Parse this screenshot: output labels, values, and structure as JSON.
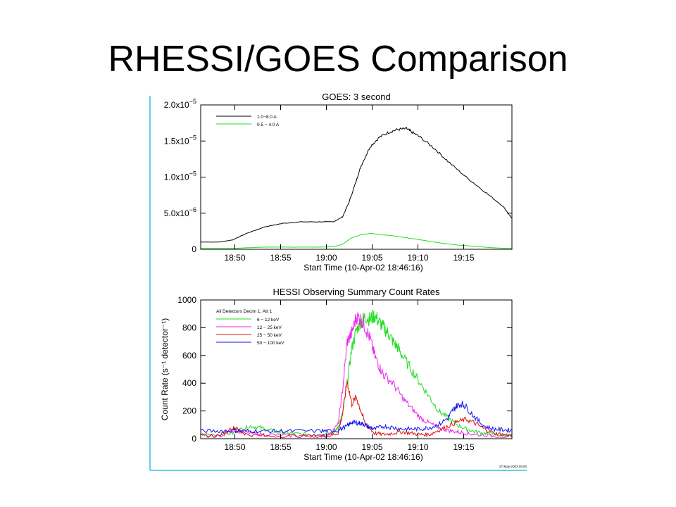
{
  "slide": {
    "title": "RHESSI/GOES Comparison"
  },
  "colors": {
    "accent_border": "#5fd3e8",
    "black": "#000000",
    "green": "#22dd22",
    "magenta": "#ee22ee",
    "red": "#dd1111",
    "blue": "#1111ee"
  },
  "chart_data": [
    {
      "type": "line",
      "title": "GOES: 3 second",
      "xlabel": "Start Time (10-Apr-02 18:46:16)",
      "ylabel": "",
      "x_unit": "minutes after 18:46:16",
      "xlim": [
        0,
        34
      ],
      "ylim": [
        0,
        2e-05
      ],
      "x_ticks": [
        "18:50",
        "18:55",
        "19:00",
        "19:05",
        "19:10",
        "19:15"
      ],
      "x_tick_values": [
        3.73,
        8.73,
        13.73,
        18.73,
        23.73,
        28.73
      ],
      "y_ticks": [
        {
          "value": 0,
          "mant": "0",
          "exp": ""
        },
        {
          "value": 5e-06,
          "mant": "5.0x10",
          "exp": "−6"
        },
        {
          "value": 1e-05,
          "mant": "1.0x10",
          "exp": "−5"
        },
        {
          "value": 1.5e-05,
          "mant": "1.5x10",
          "exp": "−5"
        },
        {
          "value": 2e-05,
          "mant": "2.0x10",
          "exp": "−5"
        }
      ],
      "legend_position": "top-left",
      "series": [
        {
          "name": "1.0−8.0 A",
          "color": "#000000",
          "x": [
            0,
            2,
            3.5,
            5,
            7,
            9,
            11,
            13,
            14.5,
            15.5,
            16.2,
            17,
            17.5,
            18.5,
            19.5,
            20.5,
            21.5,
            22.5,
            23,
            24,
            25.5,
            27,
            29,
            31,
            33,
            34
          ],
          "y": [
            1e-06,
            1e-06,
            1.3e-06,
            2.2e-06,
            3.1e-06,
            3.6e-06,
            3.8e-06,
            3.8e-06,
            3.8e-06,
            4.5e-06,
            6.5e-06,
            9.5e-06,
            1.15e-05,
            1.42e-05,
            1.55e-05,
            1.62e-05,
            1.66e-05,
            1.67e-05,
            1.63e-05,
            1.55e-05,
            1.4e-05,
            1.22e-05,
            1e-05,
            8e-06,
            6e-06,
            4.3e-06
          ]
        },
        {
          "name": "0.5 − 4.0 A",
          "color": "#22dd22",
          "x": [
            0,
            3,
            5,
            7,
            10,
            13,
            14.5,
            15.5,
            16.5,
            17.5,
            18.5,
            20,
            22,
            24,
            26,
            28,
            30,
            32,
            34
          ],
          "y": [
            1e-07,
            1e-07,
            2e-07,
            3e-07,
            3e-07,
            3e-07,
            3.5e-07,
            7e-07,
            1.6e-06,
            2e-06,
            2.2e-06,
            2e-06,
            1.7e-06,
            1.3e-06,
            9e-07,
            6e-07,
            4e-07,
            2e-07,
            1e-07
          ]
        }
      ]
    },
    {
      "type": "line",
      "title": "HESSI Observing Summary Count Rates",
      "xlabel": "Start Time (10-Apr-02 18:46:16)",
      "ylabel": "Count Rate (s⁻¹ detector⁻¹)",
      "x_unit": "minutes after 18:46:16",
      "xlim": [
        0,
        34
      ],
      "ylim": [
        0,
        1000
      ],
      "x_ticks": [
        "18:50",
        "18:55",
        "19:00",
        "19:05",
        "19:10",
        "19:15"
      ],
      "x_tick_values": [
        3.73,
        8.73,
        13.73,
        18.73,
        23.73,
        28.73
      ],
      "y_ticks": [
        0,
        200,
        400,
        600,
        800,
        1000
      ],
      "legend_position": "top-left",
      "legend_header": "All Detectors Decim 1, Att 1",
      "stamp": "27-May-2002 09:00",
      "series": [
        {
          "name": "6 − 12 keV",
          "color": "#22dd22",
          "x": [
            0,
            2,
            3.5,
            4.5,
            5.5,
            6.5,
            7.5,
            8.5,
            9.5,
            10.5,
            12,
            13.5,
            14.5,
            15,
            15.5,
            16,
            16.5,
            17,
            17.5,
            18,
            18.5,
            19,
            19.5,
            20,
            20.5,
            21,
            21.5,
            22,
            23,
            24,
            25,
            26,
            27,
            28,
            29,
            30,
            31,
            32,
            33,
            34
          ],
          "y": [
            30,
            30,
            40,
            70,
            90,
            80,
            60,
            50,
            40,
            35,
            30,
            35,
            45,
            80,
            180,
            400,
            650,
            780,
            850,
            880,
            860,
            890,
            840,
            800,
            760,
            700,
            660,
            600,
            500,
            400,
            300,
            200,
            150,
            100,
            70,
            50,
            40,
            30,
            25,
            20
          ]
        },
        {
          "name": "12 − 25 keV",
          "color": "#ee22ee",
          "x": [
            0,
            2,
            3.5,
            4.5,
            5.5,
            7,
            9,
            11,
            13,
            14,
            15,
            15.5,
            16,
            16.5,
            17,
            17.5,
            18,
            18.5,
            19,
            19.5,
            20,
            21,
            22,
            23,
            24,
            25,
            26,
            27,
            28,
            29,
            30,
            32,
            34
          ],
          "y": [
            20,
            20,
            60,
            50,
            40,
            30,
            25,
            20,
            20,
            30,
            100,
            350,
            700,
            760,
            880,
            860,
            800,
            720,
            600,
            520,
            460,
            400,
            300,
            220,
            150,
            110,
            80,
            60,
            50,
            40,
            30,
            20,
            15
          ]
        },
        {
          "name": "25 − 50 keV",
          "color": "#dd1111",
          "x": [
            0,
            2,
            3.5,
            4,
            5,
            7,
            10,
            13,
            14,
            15,
            15.5,
            16,
            16.5,
            17,
            17.5,
            18,
            19,
            20,
            21,
            22,
            23,
            24,
            25,
            26,
            27,
            28,
            29,
            30,
            31,
            32,
            33,
            34
          ],
          "y": [
            20,
            20,
            80,
            70,
            30,
            20,
            20,
            20,
            20,
            40,
            180,
            420,
            250,
            300,
            200,
            100,
            40,
            30,
            40,
            50,
            40,
            30,
            30,
            60,
            90,
            120,
            140,
            110,
            70,
            40,
            30,
            20
          ]
        },
        {
          "name": "50 − 100 keV",
          "color": "#1111ee",
          "x": [
            0,
            2,
            3.5,
            4.5,
            6,
            8,
            10,
            13,
            14,
            15,
            16,
            16.5,
            17,
            17.5,
            18,
            18.5,
            19,
            20,
            21,
            22,
            23,
            24,
            25,
            26,
            27,
            27.5,
            28,
            28.5,
            29,
            30,
            31,
            32,
            33,
            34
          ],
          "y": [
            55,
            55,
            60,
            55,
            55,
            55,
            55,
            55,
            55,
            60,
            90,
            120,
            115,
            110,
            100,
            80,
            70,
            90,
            80,
            70,
            70,
            70,
            80,
            100,
            150,
            200,
            240,
            250,
            230,
            150,
            90,
            70,
            65,
            60
          ]
        }
      ]
    }
  ]
}
